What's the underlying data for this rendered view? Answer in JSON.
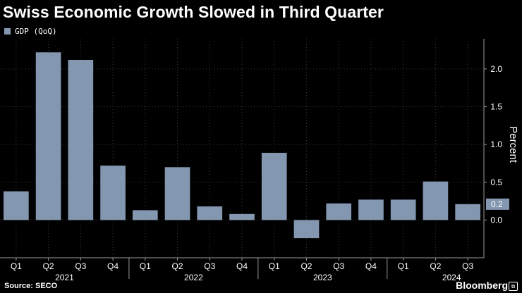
{
  "title": "Swiss Economic Growth Slowed in Third Quarter",
  "legend": {
    "label": "GDP (QoQ)"
  },
  "source": "Source: SECO",
  "brand": "Bloomberg",
  "colors": {
    "bar": "#8497b0",
    "background": "#000000",
    "grid": "#3a3a3a",
    "text": "#ffffff"
  },
  "chart_data": {
    "type": "bar",
    "title": "Swiss Economic Growth Slowed in Third Quarter",
    "xlabel": "",
    "ylabel": "Percent",
    "series_name": "GDP (QoQ)",
    "categories": [
      "Q1",
      "Q2",
      "Q3",
      "Q4",
      "Q1",
      "Q2",
      "Q3",
      "Q4",
      "Q1",
      "Q2",
      "Q3",
      "Q4",
      "Q1",
      "Q2",
      "Q3"
    ],
    "years": [
      {
        "label": "2021",
        "category_index": 1
      },
      {
        "label": "2022",
        "category_index": 5
      },
      {
        "label": "2023",
        "category_index": 9
      },
      {
        "label": "2024",
        "category_index": 13
      }
    ],
    "values": [
      0.38,
      2.22,
      2.12,
      0.72,
      0.13,
      0.7,
      0.18,
      0.08,
      0.89,
      -0.24,
      0.22,
      0.27,
      0.27,
      0.51,
      0.21
    ],
    "ylim": [
      -0.5,
      2.4
    ],
    "yticks": [
      0.0,
      0.5,
      1.0,
      1.5,
      2.0
    ],
    "ytick_labels": [
      "0.0",
      "0.5",
      "1.0",
      "1.5",
      "2.0"
    ],
    "last_value_label": "0.2"
  }
}
